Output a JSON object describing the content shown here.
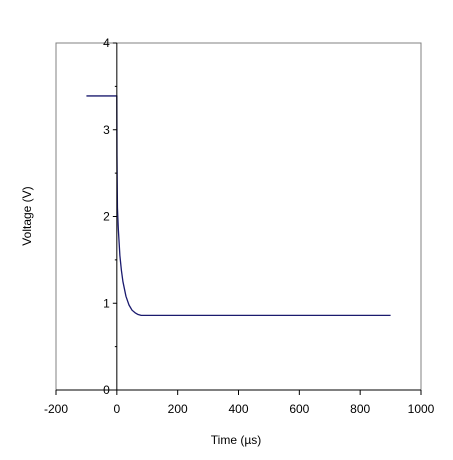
{
  "chart_data": {
    "type": "line",
    "title": "",
    "xlabel": "Time (µs)",
    "ylabel": "Voltage (V)",
    "xlim": [
      -200,
      1000
    ],
    "ylim": [
      0,
      4
    ],
    "x_ticks": [
      -200,
      0,
      200,
      400,
      600,
      800,
      1000
    ],
    "y_ticks": [
      0,
      1,
      2,
      3,
      4
    ],
    "x_tick_labels": [
      "-200",
      "0",
      "200",
      "400",
      "600",
      "800",
      "1000"
    ],
    "y_tick_labels": [
      "0",
      "1",
      "2",
      "3",
      "4"
    ],
    "grid": false,
    "legend": "none",
    "series": [
      {
        "color": "#1a1a6e",
        "x": [
          -100,
          0,
          0.5,
          2,
          5,
          10,
          15,
          20,
          30,
          40,
          50,
          60,
          70,
          80,
          100,
          150,
          200,
          300,
          400,
          500,
          600,
          700,
          800,
          900
        ],
        "y": [
          3.39,
          3.39,
          2.7,
          2.1,
          1.85,
          1.55,
          1.38,
          1.25,
          1.08,
          0.98,
          0.92,
          0.89,
          0.87,
          0.86,
          0.86,
          0.86,
          0.86,
          0.86,
          0.86,
          0.86,
          0.86,
          0.86,
          0.86,
          0.86
        ]
      }
    ]
  },
  "colors": {
    "frame": "#808080",
    "axis": "#000000",
    "line": "#1a1a6e"
  }
}
